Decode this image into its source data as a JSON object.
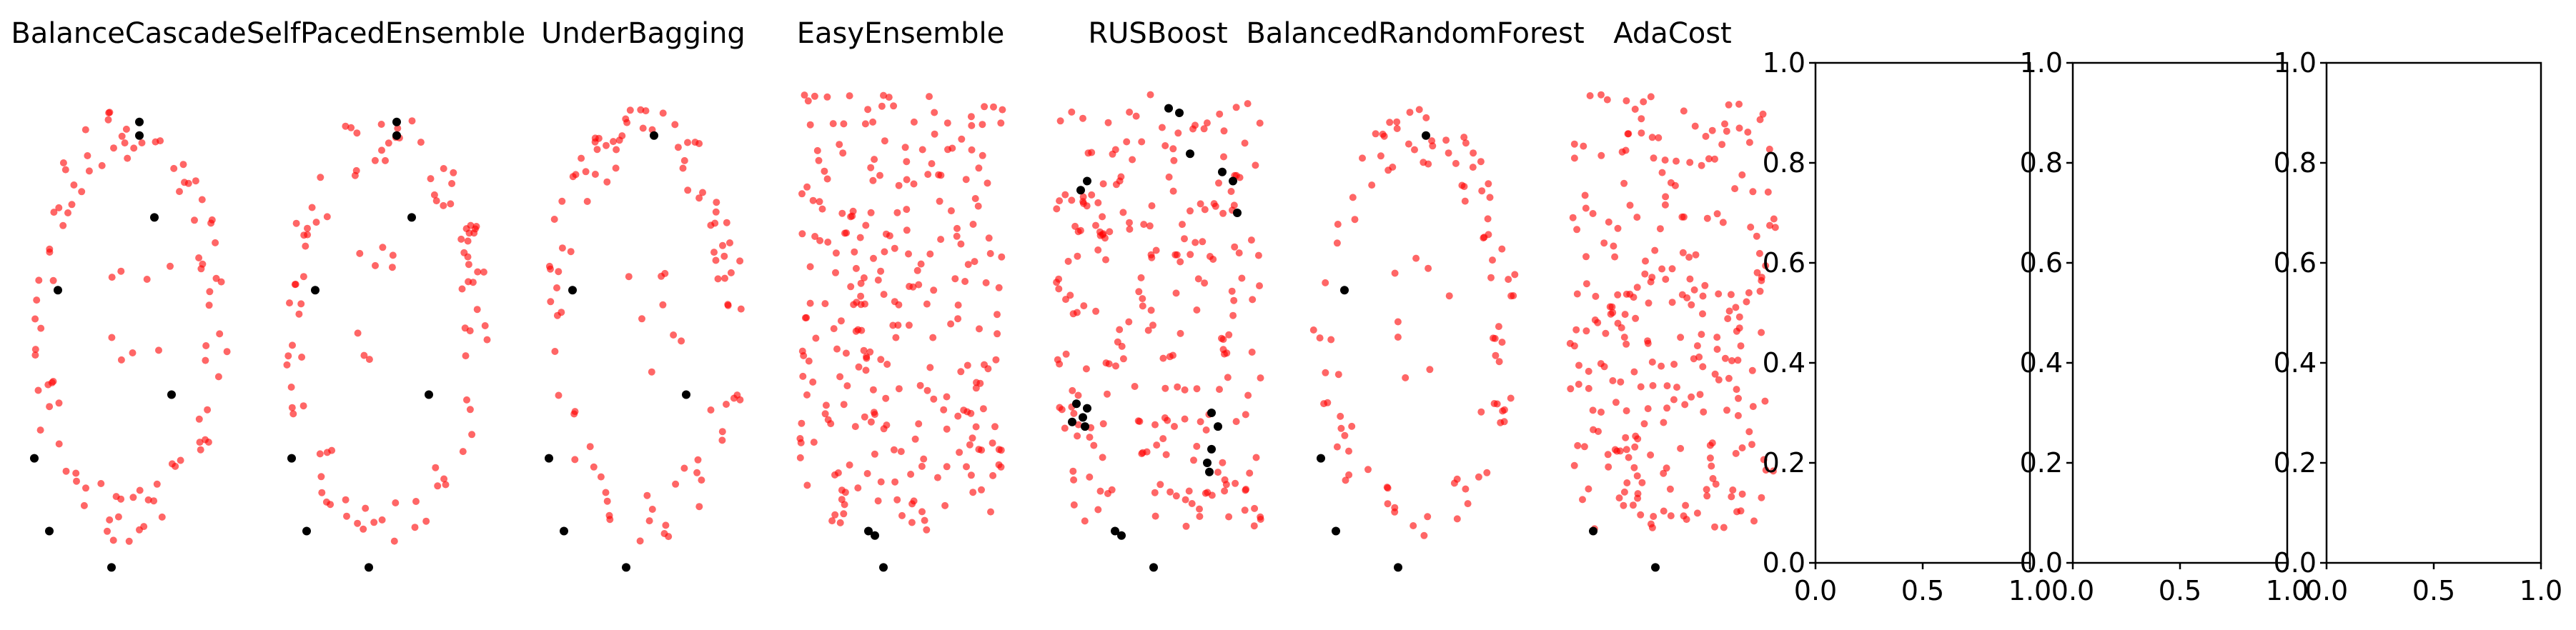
{
  "figure": {
    "colors": {
      "majority": "#ff0000",
      "minority": "#000000",
      "majority_alpha": 0.6
    }
  },
  "chart_data": [
    {
      "type": "scatter",
      "title": "BalanceCascade",
      "ylim": [
        -0.05,
        1.05
      ],
      "xlim": [
        0,
        1
      ],
      "seed": 11,
      "majority_shape": "ring",
      "majority_count": 95,
      "minority_points": [
        [
          0.55,
          0.92
        ],
        [
          0.55,
          0.89
        ],
        [
          0.62,
          0.71
        ],
        [
          0.17,
          0.55
        ],
        [
          0.7,
          0.32
        ],
        [
          0.06,
          0.18
        ],
        [
          0.13,
          0.02
        ],
        [
          0.42,
          -0.06
        ]
      ]
    },
    {
      "type": "scatter",
      "title": "SelfPacedEnsemble",
      "ylim": [
        -0.05,
        1.05
      ],
      "xlim": [
        0,
        1
      ],
      "seed": 23,
      "majority_shape": "ring",
      "majority_count": 95,
      "minority_points": [
        [
          0.55,
          0.92
        ],
        [
          0.55,
          0.89
        ],
        [
          0.62,
          0.71
        ],
        [
          0.17,
          0.55
        ],
        [
          0.7,
          0.32
        ],
        [
          0.06,
          0.18
        ],
        [
          0.13,
          0.02
        ],
        [
          0.42,
          -0.06
        ]
      ]
    },
    {
      "type": "scatter",
      "title": "UnderBagging",
      "ylim": [
        -0.05,
        1.05
      ],
      "xlim": [
        0,
        1
      ],
      "seed": 37,
      "majority_shape": "ring",
      "majority_count": 95,
      "minority_points": [
        [
          0.55,
          0.89
        ],
        [
          0.17,
          0.55
        ],
        [
          0.7,
          0.32
        ],
        [
          0.06,
          0.18
        ],
        [
          0.13,
          0.02
        ],
        [
          0.42,
          -0.06
        ]
      ]
    },
    {
      "type": "scatter",
      "title": "EasyEnsemble",
      "ylim": [
        -0.05,
        1.05
      ],
      "xlim": [
        0,
        1
      ],
      "seed": 41,
      "majority_shape": "fill",
      "majority_count": 260,
      "minority_points": [
        [
          0.35,
          0.02
        ],
        [
          0.38,
          0.01
        ],
        [
          0.42,
          -0.06
        ]
      ]
    },
    {
      "type": "scatter",
      "title": "RUSBoost",
      "ylim": [
        -0.05,
        1.05
      ],
      "xlim": [
        0,
        1
      ],
      "seed": 53,
      "majority_shape": "fill",
      "majority_count": 230,
      "minority_points": [
        [
          0.55,
          0.95
        ],
        [
          0.6,
          0.94
        ],
        [
          0.65,
          0.85
        ],
        [
          0.14,
          0.77
        ],
        [
          0.17,
          0.79
        ],
        [
          0.8,
          0.81
        ],
        [
          0.85,
          0.79
        ],
        [
          0.87,
          0.72
        ],
        [
          0.12,
          0.3
        ],
        [
          0.17,
          0.29
        ],
        [
          0.15,
          0.27
        ],
        [
          0.1,
          0.26
        ],
        [
          0.16,
          0.25
        ],
        [
          0.75,
          0.28
        ],
        [
          0.78,
          0.25
        ],
        [
          0.75,
          0.2
        ],
        [
          0.73,
          0.17
        ],
        [
          0.74,
          0.15
        ],
        [
          0.3,
          0.02
        ],
        [
          0.33,
          0.01
        ],
        [
          0.48,
          -0.06
        ]
      ]
    },
    {
      "type": "scatter",
      "title": "BalancedRandomForest",
      "ylim": [
        -0.05,
        1.05
      ],
      "xlim": [
        0,
        1
      ],
      "seed": 67,
      "majority_shape": "ring",
      "majority_count": 95,
      "minority_points": [
        [
          0.55,
          0.89
        ],
        [
          0.17,
          0.55
        ],
        [
          0.06,
          0.18
        ],
        [
          0.13,
          0.02
        ],
        [
          0.42,
          -0.06
        ]
      ]
    },
    {
      "type": "scatter",
      "title": "AdaCost",
      "ylim": [
        -0.05,
        1.05
      ],
      "xlim": [
        0,
        1
      ],
      "seed": 79,
      "majority_shape": "fill",
      "majority_count": 260,
      "minority_points": [
        [
          0.13,
          0.02
        ],
        [
          0.42,
          -0.06
        ]
      ]
    },
    {
      "type": "empty",
      "title": "",
      "xlim": [
        0,
        1
      ],
      "ylim": [
        0,
        1
      ],
      "xticks": [
        "0.0",
        "0.5",
        "1.0"
      ],
      "yticks": [
        "0.0",
        "0.2",
        "0.4",
        "0.6",
        "0.8",
        "1.0"
      ]
    },
    {
      "type": "empty",
      "title": "",
      "xlim": [
        0,
        1
      ],
      "ylim": [
        0,
        1
      ],
      "xticks": [
        "0.0",
        "0.5",
        "1.0"
      ],
      "yticks": [
        "0.0",
        "0.2",
        "0.4",
        "0.6",
        "0.8",
        "1.0"
      ]
    },
    {
      "type": "empty",
      "title": "",
      "xlim": [
        0,
        1
      ],
      "ylim": [
        0,
        1
      ],
      "xticks": [
        "0.0",
        "0.5",
        "1.0"
      ],
      "yticks": [
        "0.0",
        "0.2",
        "0.4",
        "0.6",
        "0.8",
        "1.0"
      ]
    }
  ]
}
